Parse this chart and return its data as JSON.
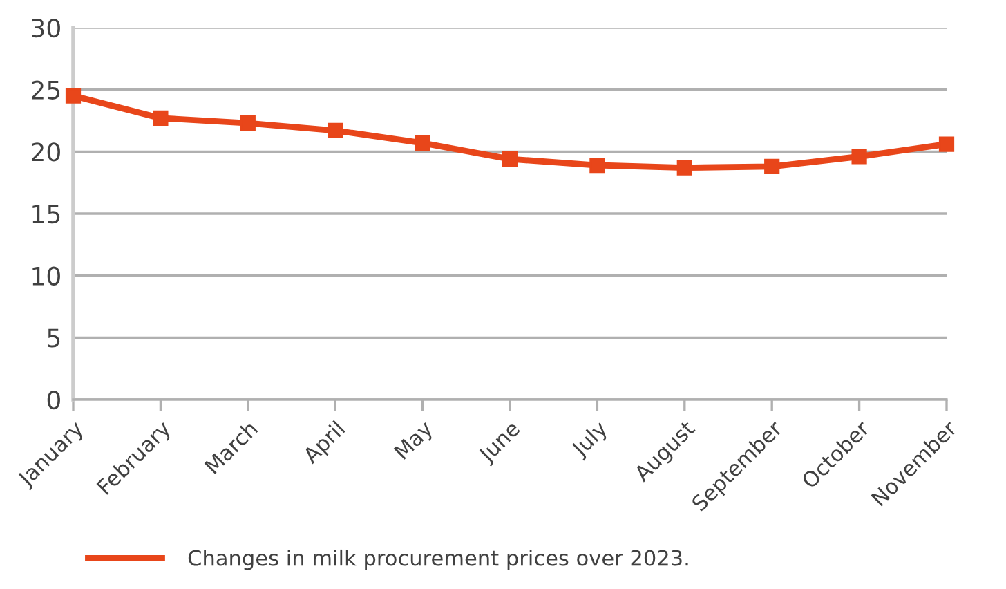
{
  "chart_data": {
    "type": "line",
    "categories": [
      "January",
      "February",
      "March",
      "April",
      "May",
      "June",
      "July",
      "August",
      "September",
      "October",
      "November"
    ],
    "series": [
      {
        "name": "Changes in milk procurement prices over 2023.",
        "color": "#e8461a",
        "values": [
          24.5,
          22.7,
          22.3,
          21.7,
          20.7,
          19.4,
          18.9,
          18.7,
          18.8,
          19.6,
          20.6
        ]
      }
    ],
    "ylim": [
      0,
      30
    ],
    "yticks": [
      0,
      5,
      10,
      15,
      20,
      25,
      30
    ],
    "grid": "y",
    "legend": "bottom",
    "marker": "square",
    "line_style": "solid"
  }
}
